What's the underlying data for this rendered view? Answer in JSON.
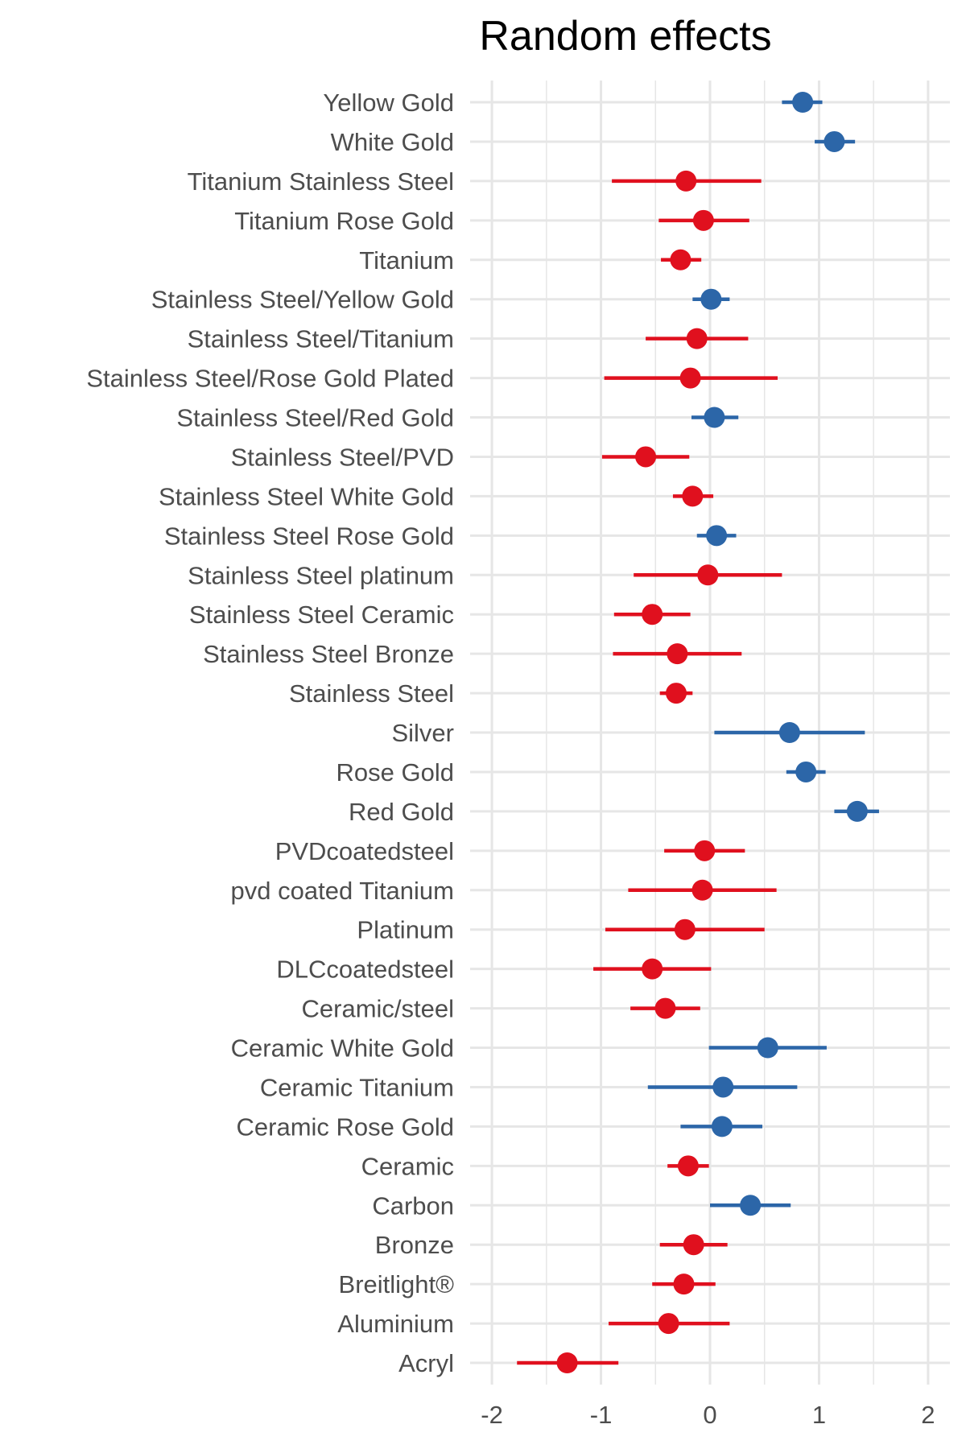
{
  "chart_data": {
    "type": "scatter",
    "title": "Random effects",
    "xlabel": "",
    "ylabel": "",
    "xlim": [
      -2.2,
      2.2
    ],
    "xticks": [
      "-2",
      "-1",
      "0",
      "1",
      "2"
    ],
    "grid": true,
    "legend": "none",
    "colors": {
      "positive": "#2C66A8",
      "negative": "#E0101E",
      "grid": "#e6e6e6"
    },
    "points": [
      {
        "label": "Yellow Gold",
        "estimate": 0.85,
        "lower": 0.66,
        "upper": 1.03,
        "group": "positive"
      },
      {
        "label": "White Gold",
        "estimate": 1.14,
        "lower": 0.96,
        "upper": 1.33,
        "group": "positive"
      },
      {
        "label": "Titanium Stainless Steel",
        "estimate": -0.22,
        "lower": -0.9,
        "upper": 0.47,
        "group": "negative"
      },
      {
        "label": "Titanium Rose Gold",
        "estimate": -0.06,
        "lower": -0.47,
        "upper": 0.36,
        "group": "negative"
      },
      {
        "label": "Titanium",
        "estimate": -0.27,
        "lower": -0.45,
        "upper": -0.08,
        "group": "negative"
      },
      {
        "label": "Stainless Steel/Yellow Gold",
        "estimate": 0.01,
        "lower": -0.16,
        "upper": 0.18,
        "group": "positive"
      },
      {
        "label": "Stainless Steel/Titanium",
        "estimate": -0.12,
        "lower": -0.59,
        "upper": 0.35,
        "group": "negative"
      },
      {
        "label": "Stainless Steel/Rose Gold Plated",
        "estimate": -0.18,
        "lower": -0.97,
        "upper": 0.62,
        "group": "negative"
      },
      {
        "label": "Stainless Steel/Red Gold",
        "estimate": 0.04,
        "lower": -0.17,
        "upper": 0.26,
        "group": "positive"
      },
      {
        "label": "Stainless Steel/PVD",
        "estimate": -0.59,
        "lower": -0.99,
        "upper": -0.19,
        "group": "negative"
      },
      {
        "label": "Stainless Steel White Gold",
        "estimate": -0.16,
        "lower": -0.34,
        "upper": 0.03,
        "group": "negative"
      },
      {
        "label": "Stainless Steel Rose Gold",
        "estimate": 0.06,
        "lower": -0.12,
        "upper": 0.24,
        "group": "positive"
      },
      {
        "label": "Stainless Steel platinum",
        "estimate": -0.02,
        "lower": -0.7,
        "upper": 0.66,
        "group": "negative"
      },
      {
        "label": "Stainless Steel Ceramic",
        "estimate": -0.53,
        "lower": -0.88,
        "upper": -0.18,
        "group": "negative"
      },
      {
        "label": "Stainless Steel Bronze",
        "estimate": -0.3,
        "lower": -0.89,
        "upper": 0.29,
        "group": "negative"
      },
      {
        "label": "Stainless Steel",
        "estimate": -0.31,
        "lower": -0.46,
        "upper": -0.16,
        "group": "negative"
      },
      {
        "label": "Silver",
        "estimate": 0.73,
        "lower": 0.04,
        "upper": 1.42,
        "group": "positive"
      },
      {
        "label": "Rose Gold",
        "estimate": 0.88,
        "lower": 0.7,
        "upper": 1.06,
        "group": "positive"
      },
      {
        "label": "Red Gold",
        "estimate": 1.35,
        "lower": 1.14,
        "upper": 1.55,
        "group": "positive"
      },
      {
        "label": "PVDcoatedsteel",
        "estimate": -0.05,
        "lower": -0.42,
        "upper": 0.32,
        "group": "negative"
      },
      {
        "label": "pvd coated Titanium",
        "estimate": -0.07,
        "lower": -0.75,
        "upper": 0.61,
        "group": "negative"
      },
      {
        "label": "Platinum",
        "estimate": -0.23,
        "lower": -0.96,
        "upper": 0.5,
        "group": "negative"
      },
      {
        "label": "DLCcoatedsteel",
        "estimate": -0.53,
        "lower": -1.07,
        "upper": 0.01,
        "group": "negative"
      },
      {
        "label": "Ceramic/steel",
        "estimate": -0.41,
        "lower": -0.73,
        "upper": -0.09,
        "group": "negative"
      },
      {
        "label": "Ceramic White Gold",
        "estimate": 0.53,
        "lower": -0.01,
        "upper": 1.07,
        "group": "positive"
      },
      {
        "label": "Ceramic Titanium",
        "estimate": 0.12,
        "lower": -0.57,
        "upper": 0.8,
        "group": "positive"
      },
      {
        "label": "Ceramic Rose Gold",
        "estimate": 0.11,
        "lower": -0.27,
        "upper": 0.48,
        "group": "positive"
      },
      {
        "label": "Ceramic",
        "estimate": -0.2,
        "lower": -0.39,
        "upper": -0.01,
        "group": "negative"
      },
      {
        "label": "Carbon",
        "estimate": 0.37,
        "lower": 0.0,
        "upper": 0.74,
        "group": "positive"
      },
      {
        "label": "Bronze",
        "estimate": -0.15,
        "lower": -0.46,
        "upper": 0.16,
        "group": "negative"
      },
      {
        "label": "Breitlight®",
        "estimate": -0.24,
        "lower": -0.53,
        "upper": 0.05,
        "group": "negative"
      },
      {
        "label": "Aluminium",
        "estimate": -0.38,
        "lower": -0.93,
        "upper": 0.18,
        "group": "negative"
      },
      {
        "label": "Acryl",
        "estimate": -1.31,
        "lower": -1.77,
        "upper": -0.84,
        "group": "negative"
      }
    ]
  }
}
